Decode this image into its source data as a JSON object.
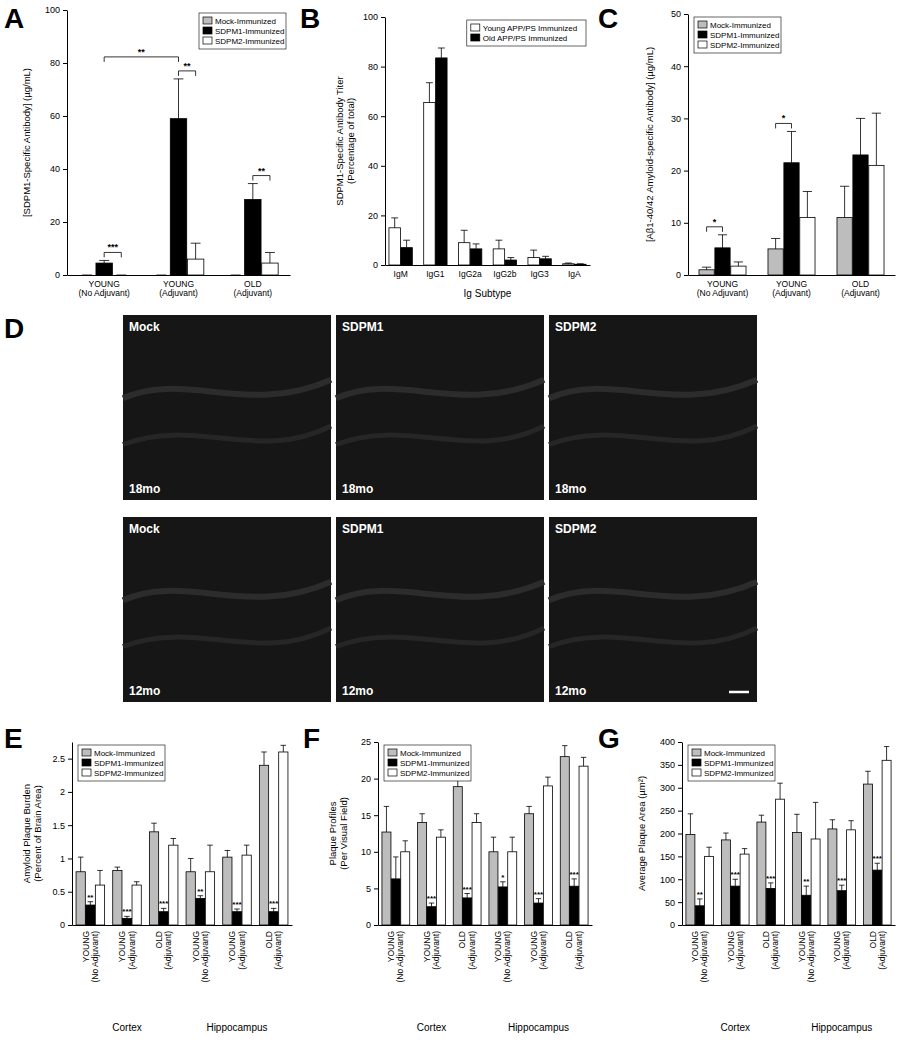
{
  "chart_data": [
    {
      "type": "bar",
      "title": "A",
      "ylabel": "[SDPM1-Specific Antibody] (µg/mL)",
      "categories": [
        "YOUNG\n(No Adjuvant)",
        "YOUNG\n(Adjuvant)",
        "OLD\n(Adjuvant)"
      ],
      "ylim": [
        0,
        100
      ],
      "yticks": [
        0,
        20,
        40,
        60,
        80,
        100
      ],
      "legend": "top-right",
      "series": [
        {
          "name": "Mock-Immunized",
          "color": "#bdbdbd",
          "values": [
            0,
            0,
            0
          ],
          "errors": [
            0,
            0,
            0
          ]
        },
        {
          "name": "SDPM1-Immunized",
          "color": "#000000",
          "values": [
            4.5,
            59,
            28.5
          ],
          "errors": [
            1,
            15,
            6
          ]
        },
        {
          "name": "SDPM2-Immunized",
          "color": "#ffffff",
          "values": [
            0,
            6,
            4.5
          ],
          "errors": [
            0,
            6,
            4
          ]
        }
      ],
      "comparisons": [
        {
          "text": "***",
          "from": {
            "category": 0,
            "series": 1
          },
          "to": {
            "category": 0,
            "series": 2
          }
        },
        {
          "text": "**",
          "from": {
            "category": 1,
            "series": 1
          },
          "to": {
            "category": 1,
            "series": 2
          }
        },
        {
          "text": "**",
          "from": {
            "category": 0,
            "series": 1
          },
          "to": {
            "category": 1,
            "series": 1
          }
        },
        {
          "text": "**",
          "from": {
            "category": 2,
            "series": 1
          },
          "to": {
            "category": 2,
            "series": 2
          }
        }
      ]
    },
    {
      "type": "bar",
      "title": "B",
      "ylabel": "SDPM1-Specific Antibody Titer\n(Percentage of total)",
      "xlabel": "Ig Subtype",
      "categories": [
        "IgM",
        "IgG1",
        "IgG2a",
        "IgG2b",
        "IgG3",
        "IgA"
      ],
      "ylim": [
        0,
        100
      ],
      "yticks": [
        0,
        20,
        40,
        60,
        80,
        100
      ],
      "legend": "top-right",
      "series": [
        {
          "name": "Young APP/PS Immunized",
          "color": "#ffffff",
          "values": [
            15,
            65.5,
            9,
            6.5,
            3,
            0.5
          ],
          "errors": [
            4,
            8,
            5,
            3.5,
            3,
            0.3
          ]
        },
        {
          "name": "Old APP/PS Immunized",
          "color": "#000000",
          "values": [
            7,
            83.5,
            6.5,
            2,
            2.5,
            0.3
          ],
          "errors": [
            3,
            4,
            2,
            1,
            1,
            0.2
          ]
        }
      ]
    },
    {
      "type": "bar",
      "title": "C",
      "ylabel": "[Aβ1-40/42 Amyloid-specific Antibody] (µg/mL)",
      "categories": [
        "YOUNG\n(No Adjuvant)",
        "YOUNG\n(Adjuvant)",
        "OLD\n(Adjuvant)"
      ],
      "ylim": [
        0,
        50
      ],
      "yticks": [
        0,
        10,
        20,
        30,
        40,
        50
      ],
      "legend": "top-left",
      "series": [
        {
          "name": "Mock-Immunized",
          "color": "#bdbdbd",
          "values": [
            1,
            5,
            11
          ],
          "errors": [
            0.5,
            2,
            6
          ]
        },
        {
          "name": "SDPM1-Immunized",
          "color": "#000000",
          "values": [
            5.2,
            21.5,
            23
          ],
          "errors": [
            2.5,
            6,
            7
          ]
        },
        {
          "name": "SDPM2-Immunized",
          "color": "#ffffff",
          "values": [
            1.7,
            11,
            21
          ],
          "errors": [
            0.8,
            5,
            10
          ]
        }
      ],
      "comparisons": [
        {
          "text": "*",
          "from": {
            "category": 0,
            "series": 0
          },
          "to": {
            "category": 0,
            "series": 1
          }
        },
        {
          "text": "*",
          "from": {
            "category": 1,
            "series": 0
          },
          "to": {
            "category": 1,
            "series": 1
          }
        }
      ]
    },
    {
      "type": "bar",
      "title": "E",
      "ylabel": "Amyloid Plaque Burden\n(Percent of Brain Area)",
      "categories": [
        "YOUNG\n(No Adjuvant)",
        "YOUNG\n(Adjuvant)",
        "OLD\n(Adjuvant)",
        "YOUNG\n(No Adjuvant)",
        "YOUNG\n(Adjuvant)",
        "OLD\n(Adjuvant)"
      ],
      "groups": [
        {
          "label": "Cortex",
          "categories": [
            0,
            1,
            2
          ]
        },
        {
          "label": "Hippocampus",
          "categories": [
            3,
            4,
            5
          ]
        }
      ],
      "ylim": [
        0,
        2.75
      ],
      "yticks": [
        0,
        0.5,
        1,
        1.5,
        2,
        2.5
      ],
      "legend": "top-left",
      "series": [
        {
          "name": "Mock-Immunized",
          "color": "#bdbdbd",
          "values": [
            0.8,
            0.82,
            1.4,
            0.8,
            1.02,
            2.4
          ],
          "errors": [
            0.22,
            0.05,
            0.13,
            0.2,
            0.1,
            0.2
          ]
        },
        {
          "name": "SDPM1-Immunized",
          "color": "#000000",
          "values": [
            0.3,
            0.1,
            0.2,
            0.4,
            0.2,
            0.2
          ],
          "errors": [
            0.05,
            0.03,
            0.05,
            0.04,
            0.04,
            0.05
          ],
          "significance": [
            "**",
            "***",
            "***",
            "**",
            "***",
            "***"
          ]
        },
        {
          "name": "SDPM2-Immunized",
          "color": "#ffffff",
          "values": [
            0.6,
            0.6,
            1.2,
            0.8,
            1.05,
            2.6
          ],
          "errors": [
            0.22,
            0.05,
            0.1,
            0.4,
            0.15,
            0.1
          ]
        }
      ]
    },
    {
      "type": "bar",
      "title": "F",
      "ylabel": "Plaque Profiles\n(Per Visual Field)",
      "categories": [
        "YOUNG\n(No Adjuvant)",
        "YOUNG\n(Adjuvant)",
        "OLD\n(Adjuvant)",
        "YOUNG\n(No Adjuvant)",
        "YOUNG\n(Adjuvant)",
        "OLD\n(Adjuvant)"
      ],
      "groups": [
        {
          "label": "Cortex",
          "categories": [
            0,
            1,
            2
          ]
        },
        {
          "label": "Hippocampus",
          "categories": [
            3,
            4,
            5
          ]
        }
      ],
      "ylim": [
        0,
        25
      ],
      "yticks": [
        0,
        5,
        10,
        15,
        20,
        25
      ],
      "legend": "top-left",
      "series": [
        {
          "name": "Mock-Immunized",
          "color": "#bdbdbd",
          "values": [
            12.7,
            14,
            18.9,
            10,
            15.2,
            23
          ],
          "errors": [
            3.5,
            1.2,
            2,
            2,
            1,
            1.5
          ]
        },
        {
          "name": "SDPM1-Immunized",
          "color": "#000000",
          "values": [
            6.3,
            2.5,
            3.7,
            5.2,
            3,
            5.3
          ],
          "errors": [
            3,
            0.5,
            0.6,
            0.7,
            0.6,
            1
          ],
          "significance": [
            null,
            "***",
            "***",
            "*",
            "***",
            "***"
          ]
        },
        {
          "name": "SDPM2-Immunized",
          "color": "#ffffff",
          "values": [
            10,
            12,
            14,
            10,
            19,
            21.7
          ],
          "errors": [
            1.5,
            1,
            1.2,
            2,
            1.2,
            1.2
          ]
        }
      ]
    },
    {
      "type": "bar",
      "title": "G",
      "ylabel": "Average Plaque Area (µm²)",
      "categories": [
        "YOUNG\n(No Adjuvant)",
        "YOUNG\n(Adjuvant)",
        "OLD\n(Adjuvant)",
        "YOUNG\n(No Adjuvant)",
        "YOUNG\n(Adjuvant)",
        "OLD\n(Adjuvant)"
      ],
      "groups": [
        {
          "label": "Cortex",
          "categories": [
            0,
            1,
            2
          ]
        },
        {
          "label": "Hippocampus",
          "categories": [
            3,
            4,
            5
          ]
        }
      ],
      "ylim": [
        0,
        400
      ],
      "yticks": [
        0,
        50,
        100,
        150,
        200,
        250,
        300,
        350,
        400
      ],
      "legend": "top-left",
      "series": [
        {
          "name": "Mock-Immunized",
          "color": "#bdbdbd",
          "values": [
            198,
            186,
            225,
            202,
            210,
            308
          ],
          "errors": [
            45,
            15,
            15,
            40,
            20,
            28
          ]
        },
        {
          "name": "SDPM1-Immunized",
          "color": "#000000",
          "values": [
            42,
            85,
            80,
            65,
            75,
            120
          ],
          "errors": [
            15,
            15,
            12,
            20,
            12,
            15
          ],
          "significance": [
            "**",
            "***",
            "***",
            "**",
            "***",
            "***"
          ]
        },
        {
          "name": "SDPM2-Immunized",
          "color": "#ffffff",
          "values": [
            150,
            155,
            275,
            188,
            208,
            360
          ],
          "errors": [
            20,
            12,
            35,
            80,
            20,
            30
          ]
        }
      ]
    }
  ],
  "micrographs": {
    "title": "D",
    "panels": [
      {
        "label": "Mock",
        "age": "18mo"
      },
      {
        "label": "SDPM1",
        "age": "18mo"
      },
      {
        "label": "SDPM2",
        "age": "18mo"
      },
      {
        "label": "Mock",
        "age": "12mo"
      },
      {
        "label": "SDPM1",
        "age": "12mo"
      },
      {
        "label": "SDPM2",
        "age": "12mo"
      }
    ]
  }
}
